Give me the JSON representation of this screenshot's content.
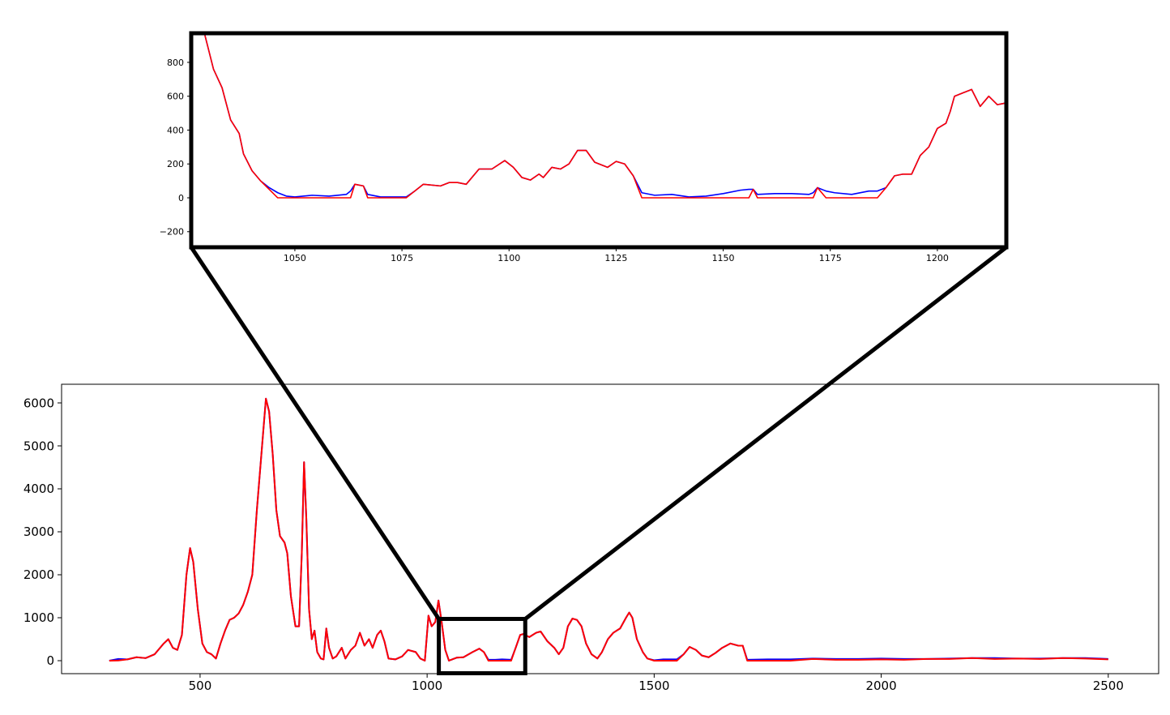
{
  "chart_data": [
    {
      "type": "line",
      "x": [
        300,
        320,
        340,
        360,
        380,
        400,
        420,
        430,
        440,
        450,
        460,
        470,
        478,
        485,
        495,
        505,
        515,
        525,
        535,
        545,
        555,
        565,
        575,
        585,
        595,
        605,
        615,
        625,
        635,
        645,
        652,
        660,
        668,
        676,
        686,
        692,
        700,
        710,
        718,
        724,
        729,
        734,
        740,
        746,
        752,
        758,
        766,
        772,
        778,
        784,
        792,
        800,
        812,
        820,
        832,
        842,
        852,
        862,
        872,
        880,
        890,
        898,
        906,
        915,
        930,
        945,
        958,
        975,
        985,
        995,
        1003,
        1010,
        1018,
        1025,
        1032,
        1040,
        1048,
        1065,
        1080,
        1100,
        1115,
        1125,
        1135,
        1150,
        1165,
        1185,
        1195,
        1205,
        1212,
        1225,
        1240,
        1250,
        1265,
        1280,
        1290,
        1300,
        1310,
        1320,
        1330,
        1340,
        1350,
        1362,
        1375,
        1385,
        1398,
        1410,
        1425,
        1438,
        1445,
        1452,
        1462,
        1475,
        1485,
        1500,
        1520,
        1550,
        1565,
        1578,
        1592,
        1605,
        1620,
        1635,
        1650,
        1668,
        1685,
        1695,
        1705,
        1750,
        1800,
        1850,
        1900,
        1950,
        2000,
        2050,
        2100,
        2150,
        2200,
        2250,
        2300,
        2350,
        2400,
        2450,
        2500
      ],
      "series": [
        {
          "color": "#0000ff",
          "values": [
            0,
            40,
            30,
            80,
            60,
            150,
            400,
            500,
            300,
            250,
            600,
            2000,
            2620,
            2300,
            1200,
            400,
            200,
            150,
            50,
            400,
            700,
            950,
            1000,
            1100,
            1300,
            1600,
            2000,
            3500,
            4800,
            6100,
            5800,
            4800,
            3500,
            2900,
            2750,
            2500,
            1500,
            800,
            800,
            2500,
            4620,
            3300,
            1200,
            500,
            700,
            200,
            50,
            30,
            750,
            300,
            50,
            100,
            300,
            50,
            250,
            350,
            650,
            350,
            500,
            300,
            600,
            700,
            450,
            50,
            30,
            100,
            250,
            200,
            50,
            0,
            1050,
            800,
            900,
            1400,
            900,
            250,
            0,
            70,
            80,
            200,
            280,
            200,
            20,
            20,
            30,
            20,
            300,
            600,
            620,
            550,
            650,
            680,
            450,
            300,
            150,
            300,
            800,
            980,
            950,
            800,
            400,
            150,
            50,
            200,
            500,
            650,
            750,
            1000,
            1120,
            1000,
            500,
            200,
            50,
            10,
            30,
            30,
            150,
            320,
            250,
            120,
            80,
            180,
            300,
            400,
            350,
            350,
            20,
            30,
            30,
            50,
            40,
            40,
            50,
            40,
            40,
            50,
            60,
            60,
            50,
            50,
            60,
            60,
            40
          ]
        },
        {
          "color": "#ff0000",
          "values": [
            0,
            5,
            30,
            80,
            60,
            150,
            400,
            500,
            300,
            250,
            600,
            2000,
            2620,
            2300,
            1200,
            400,
            200,
            150,
            50,
            400,
            700,
            950,
            1000,
            1100,
            1300,
            1600,
            2000,
            3500,
            4800,
            6100,
            5800,
            4800,
            3500,
            2900,
            2750,
            2500,
            1500,
            800,
            800,
            2500,
            4620,
            3300,
            1200,
            500,
            700,
            200,
            50,
            30,
            750,
            300,
            50,
            100,
            300,
            50,
            250,
            350,
            650,
            350,
            500,
            300,
            600,
            700,
            450,
            50,
            30,
            100,
            250,
            200,
            50,
            0,
            1050,
            800,
            900,
            1400,
            900,
            250,
            0,
            70,
            80,
            200,
            280,
            200,
            0,
            0,
            0,
            0,
            300,
            600,
            620,
            550,
            650,
            680,
            450,
            300,
            150,
            300,
            800,
            980,
            950,
            800,
            400,
            150,
            50,
            200,
            500,
            650,
            750,
            1000,
            1120,
            1000,
            500,
            200,
            50,
            0,
            0,
            0,
            150,
            320,
            250,
            120,
            80,
            180,
            300,
            400,
            350,
            350,
            0,
            0,
            0,
            40,
            20,
            20,
            30,
            20,
            40,
            40,
            60,
            40,
            50,
            40,
            60,
            50,
            30
          ]
        }
      ],
      "xlim": [
        195,
        2611
      ],
      "ylim": [
        -302,
        6434
      ],
      "xticks": [
        500,
        1000,
        1500,
        2000,
        2500
      ],
      "yticks": [
        0,
        1000,
        2000,
        3000,
        4000,
        5000,
        6000
      ]
    },
    {
      "type": "line",
      "x": [
        1029,
        1031,
        1033,
        1035,
        1037,
        1038,
        1040,
        1042,
        1044,
        1046,
        1048,
        1050,
        1054,
        1058,
        1062,
        1063,
        1064,
        1066,
        1067,
        1070,
        1074,
        1076,
        1078,
        1080,
        1084,
        1086,
        1088,
        1090,
        1093,
        1096,
        1099,
        1101,
        1103,
        1105,
        1107,
        1108,
        1110,
        1112,
        1114,
        1116,
        1118,
        1120,
        1123,
        1125,
        1127,
        1129,
        1131,
        1134,
        1138,
        1142,
        1146,
        1150,
        1154,
        1156,
        1157,
        1158,
        1162,
        1166,
        1170,
        1171,
        1172,
        1174,
        1176,
        1180,
        1184,
        1186,
        1188,
        1190,
        1192,
        1194,
        1196,
        1198,
        1200,
        1202,
        1203,
        1204,
        1206,
        1208,
        1210,
        1212,
        1214,
        1216
      ],
      "series": [
        {
          "color": "#0000ff",
          "values": [
            960,
            760,
            650,
            460,
            380,
            260,
            160,
            100,
            60,
            30,
            10,
            5,
            15,
            10,
            20,
            40,
            80,
            70,
            20,
            5,
            5,
            5,
            40,
            80,
            70,
            90,
            90,
            80,
            170,
            170,
            220,
            180,
            120,
            105,
            140,
            120,
            180,
            170,
            200,
            280,
            280,
            210,
            180,
            215,
            200,
            130,
            30,
            15,
            20,
            5,
            10,
            25,
            45,
            50,
            50,
            20,
            25,
            25,
            20,
            30,
            60,
            40,
            30,
            20,
            40,
            40,
            60,
            130,
            140,
            140,
            250,
            300,
            410,
            440,
            510,
            600,
            620,
            640,
            540,
            600,
            550,
            560
          ]
        },
        {
          "color": "#ff0000",
          "values": [
            960,
            760,
            650,
            460,
            380,
            260,
            160,
            100,
            50,
            0,
            0,
            0,
            0,
            0,
            0,
            0,
            80,
            70,
            0,
            0,
            0,
            0,
            40,
            80,
            70,
            90,
            90,
            80,
            170,
            170,
            220,
            180,
            120,
            105,
            140,
            120,
            180,
            170,
            200,
            280,
            280,
            210,
            180,
            215,
            200,
            130,
            0,
            0,
            0,
            0,
            0,
            0,
            0,
            0,
            50,
            0,
            0,
            0,
            0,
            0,
            60,
            0,
            0,
            0,
            0,
            0,
            60,
            130,
            140,
            140,
            250,
            300,
            410,
            440,
            510,
            600,
            620,
            640,
            540,
            600,
            550,
            560
          ]
        }
      ],
      "xlim": [
        1025.8,
        1216.1
      ],
      "ylim": [
        -292,
        972
      ],
      "xticks": [
        1050,
        1075,
        1100,
        1125,
        1150,
        1175,
        1200
      ],
      "yticks": [
        {
          "value": -200,
          "label": "−200"
        },
        0,
        200,
        400,
        600,
        800
      ]
    }
  ]
}
